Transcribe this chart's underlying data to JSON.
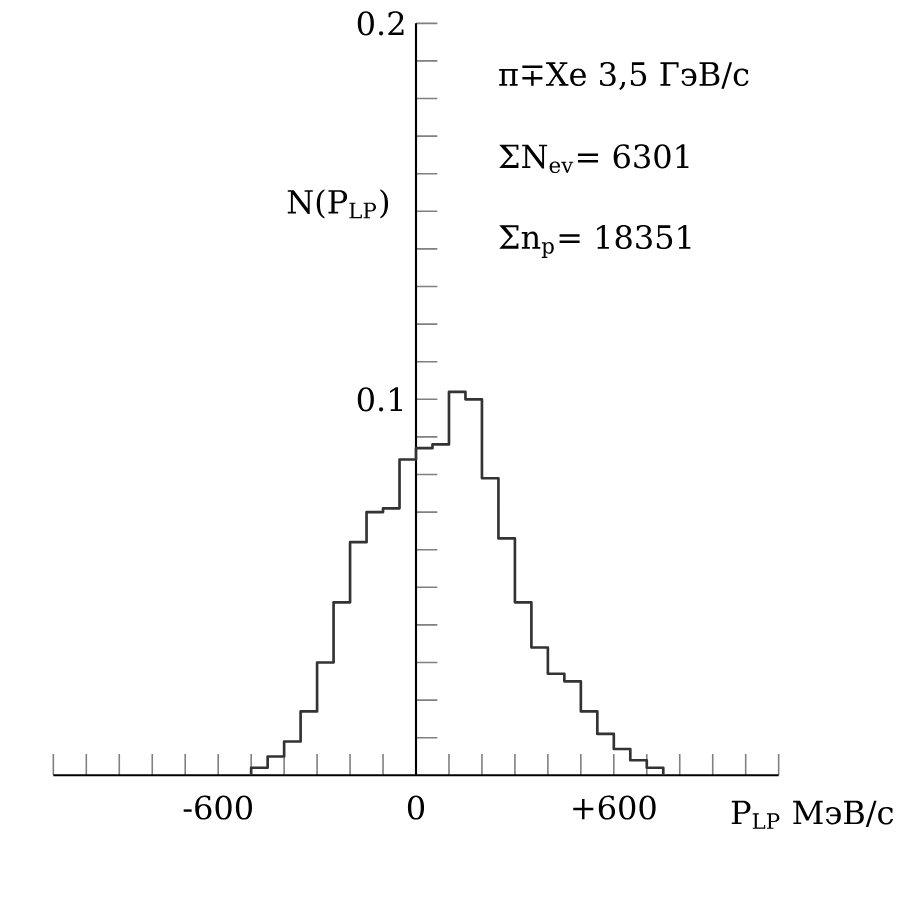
{
  "chart_data": {
    "type": "histogram",
    "bins": [
      -500,
      -450,
      -400,
      -350,
      -300,
      -250,
      -200,
      -150,
      -100,
      -50,
      0,
      50,
      100,
      150,
      200,
      250,
      300,
      350,
      400,
      450,
      500,
      550,
      600,
      650,
      700,
      750
    ],
    "values": [
      0.002,
      0.005,
      0.009,
      0.017,
      0.03,
      0.046,
      0.062,
      0.07,
      0.071,
      0.084,
      0.087,
      0.088,
      0.102,
      0.1,
      0.079,
      0.063,
      0.046,
      0.034,
      0.027,
      0.025,
      0.017,
      0.011,
      0.007,
      0.004,
      0.002
    ],
    "color": "#333333",
    "xlabel": "P$_{LP}$ МэВ/c",
    "ylabel": "N(P$_{LP}$)",
    "annotations": [
      "π∓Xe 3,5 ГэВ/c",
      "ΣN$_{ev}$= 6301",
      "Σn$_{p}$= 18351"
    ],
    "xlim": [
      -1100,
      1100
    ],
    "xticks": [
      {
        "value": -1100,
        "label": null
      },
      {
        "value": -1000,
        "label": null
      },
      {
        "value": -900,
        "label": null
      },
      {
        "value": -800,
        "label": null
      },
      {
        "value": -700,
        "label": null
      },
      {
        "value": -600,
        "label": "-600"
      },
      {
        "value": -500,
        "label": null
      },
      {
        "value": -400,
        "label": null
      },
      {
        "value": -300,
        "label": null
      },
      {
        "value": -200,
        "label": null
      },
      {
        "value": -100,
        "label": null
      },
      0,
      {
        "value": 100,
        "label": null
      },
      {
        "value": 200,
        "label": null
      },
      {
        "value": 300,
        "label": null
      },
      {
        "value": 400,
        "label": null
      },
      {
        "value": 500,
        "label": null
      },
      {
        "value": 600,
        "label": "+600"
      },
      {
        "value": 700,
        "label": null
      },
      {
        "value": 800,
        "label": null
      },
      {
        "value": 900,
        "label": null
      },
      {
        "value": 1000,
        "label": null
      },
      {
        "value": 1100,
        "label": null
      }
    ],
    "ylim": [
      0,
      0.2
    ],
    "yticks": [
      {
        "value": 0.01,
        "label": null
      },
      {
        "value": 0.02,
        "label": null
      },
      {
        "value": 0.03,
        "label": null
      },
      {
        "value": 0.04,
        "label": null
      },
      {
        "value": 0.05,
        "label": null
      },
      {
        "value": 0.06,
        "label": null
      },
      {
        "value": 0.07,
        "label": null
      },
      {
        "value": 0.08,
        "label": null
      },
      {
        "value": 0.09,
        "label": null
      },
      {
        "value": 0.1,
        "label": "0.1"
      },
      {
        "value": 0.11,
        "label": null
      },
      {
        "value": 0.12,
        "label": null
      },
      {
        "value": 0.13,
        "label": null
      },
      {
        "value": 0.14,
        "label": null
      },
      {
        "value": 0.15,
        "label": null
      },
      {
        "value": 0.16,
        "label": null
      },
      {
        "value": 0.17,
        "label": null
      },
      {
        "value": 0.18,
        "label": null
      },
      {
        "value": 0.19,
        "label": null
      },
      {
        "value": 0.2,
        "label": "0.2"
      }
    ],
    "grid": false
  }
}
